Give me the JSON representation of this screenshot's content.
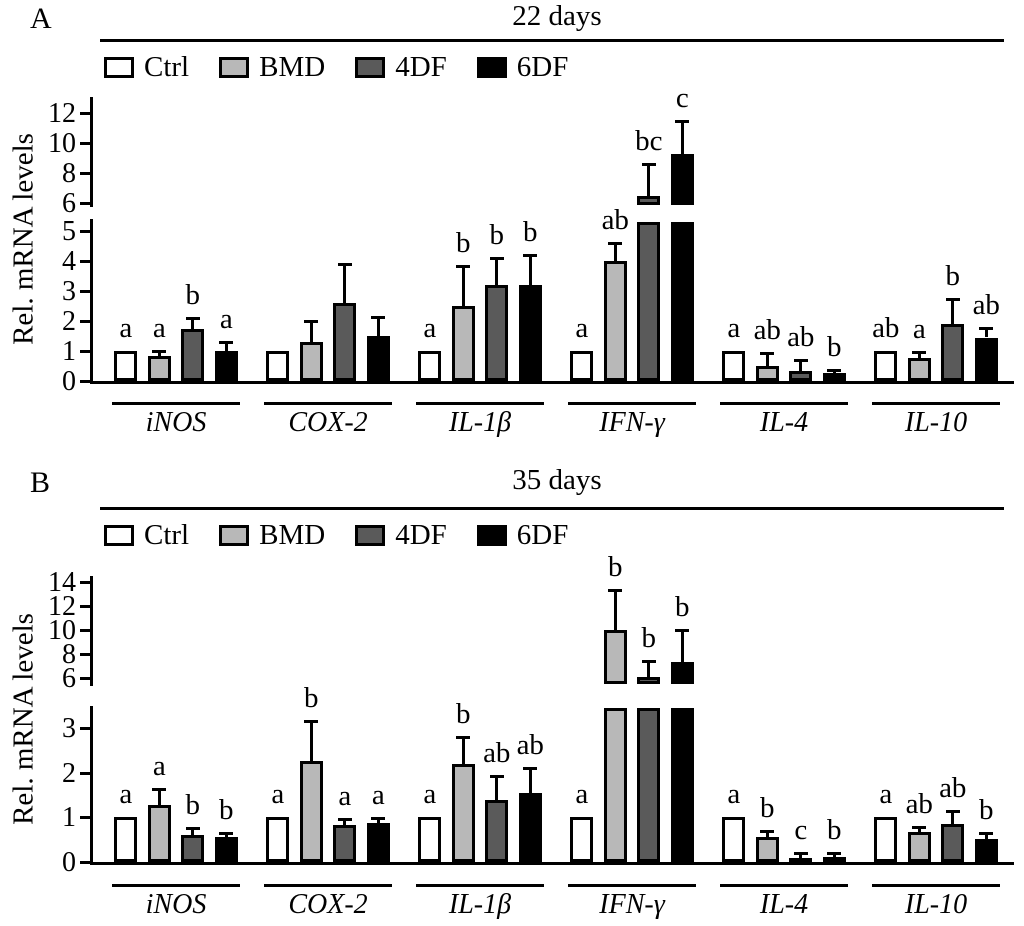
{
  "figure_title": "Relative mRNA levels bar charts",
  "colors": {
    "ctrl": "#ffffff",
    "bmd": "#b8b8b8",
    "fourdf": "#5a5a5a",
    "sixdf": "#000000",
    "axis": "#000000",
    "background": "#ffffff"
  },
  "chart_data": [
    {
      "type": "bar",
      "panel": "A",
      "title": "22 days",
      "ylabel": "Rel. mRNA levels",
      "axis_break": true,
      "grid": false,
      "legend_position": "top",
      "lower_axis": {
        "min": 0,
        "max": 5,
        "ticks": [
          0,
          1,
          2,
          3,
          4,
          5
        ]
      },
      "upper_axis": {
        "min": 6,
        "max": 12,
        "ticks": [
          6,
          8,
          10,
          12
        ]
      },
      "categories": [
        "iNOS",
        "COX-2",
        "IL-1β",
        "IFN-γ",
        "IL-4",
        "IL-10"
      ],
      "series": [
        {
          "name": "Ctrl",
          "color": "#ffffff",
          "values": [
            1.0,
            1.0,
            1.0,
            1.0,
            1.0,
            1.0
          ],
          "errors": [
            0,
            0,
            0,
            0,
            0,
            0
          ],
          "letters": [
            "a",
            "",
            "a",
            "a",
            "a",
            "ab"
          ]
        },
        {
          "name": "BMD",
          "color": "#b8b8b8",
          "values": [
            0.85,
            1.3,
            2.5,
            4.0,
            0.5,
            0.78
          ],
          "errors": [
            0.15,
            0.7,
            1.35,
            0.6,
            0.45,
            0.2
          ],
          "letters": [
            "a",
            "",
            "b",
            "ab",
            "ab",
            "a"
          ]
        },
        {
          "name": "4DF",
          "color": "#5a5a5a",
          "values": [
            1.75,
            2.6,
            3.2,
            6.5,
            0.35,
            1.9
          ],
          "errors": [
            0.35,
            1.3,
            0.9,
            2.1,
            0.35,
            0.85
          ],
          "letters": [
            "b",
            "",
            "b",
            "bc",
            "ab",
            "b"
          ]
        },
        {
          "name": "6DF",
          "color": "#000000",
          "values": [
            1.0,
            1.5,
            3.2,
            9.3,
            0.28,
            1.45
          ],
          "errors": [
            0.3,
            0.65,
            1.0,
            2.2,
            0.1,
            0.33
          ],
          "letters": [
            "a",
            "",
            "b",
            "c",
            "b",
            "ab"
          ]
        }
      ]
    },
    {
      "type": "bar",
      "panel": "B",
      "title": "35 days",
      "ylabel": "Rel. mRNA levels",
      "axis_break": true,
      "grid": false,
      "legend_position": "top",
      "lower_axis": {
        "min": 0,
        "max": 3,
        "ticks": [
          0,
          1,
          2,
          3
        ]
      },
      "upper_axis": {
        "min": 6,
        "max": 14,
        "ticks": [
          6,
          8,
          10,
          12,
          14
        ]
      },
      "categories": [
        "iNOS",
        "COX-2",
        "IL-1β",
        "IFN-γ",
        "IL-4",
        "IL-10"
      ],
      "series": [
        {
          "name": "Ctrl",
          "color": "#ffffff",
          "values": [
            1.0,
            1.0,
            1.0,
            1.0,
            1.0,
            1.0
          ],
          "errors": [
            0,
            0,
            0,
            0,
            0,
            0
          ],
          "letters": [
            "a",
            "a",
            "a",
            "a",
            "a",
            "a"
          ]
        },
        {
          "name": "BMD",
          "color": "#b8b8b8",
          "values": [
            1.28,
            2.25,
            2.2,
            10.0,
            0.55,
            0.68
          ],
          "errors": [
            0.35,
            0.9,
            0.6,
            3.3,
            0.15,
            0.1
          ],
          "letters": [
            "a",
            "b",
            "b",
            "b",
            "b",
            "ab"
          ]
        },
        {
          "name": "4DF",
          "color": "#5a5a5a",
          "values": [
            0.6,
            0.83,
            1.38,
            6.1,
            0.1,
            0.85
          ],
          "errors": [
            0.15,
            0.13,
            0.55,
            1.3,
            0.1,
            0.3
          ],
          "letters": [
            "b",
            "a",
            "ab",
            "b",
            "c",
            "ab"
          ]
        },
        {
          "name": "6DF",
          "color": "#000000",
          "values": [
            0.57,
            0.88,
            1.55,
            7.3,
            0.12,
            0.52
          ],
          "errors": [
            0.08,
            0.1,
            0.55,
            2.7,
            0.09,
            0.13
          ],
          "letters": [
            "b",
            "a",
            "ab",
            "b",
            "b",
            "b"
          ]
        }
      ]
    }
  ]
}
